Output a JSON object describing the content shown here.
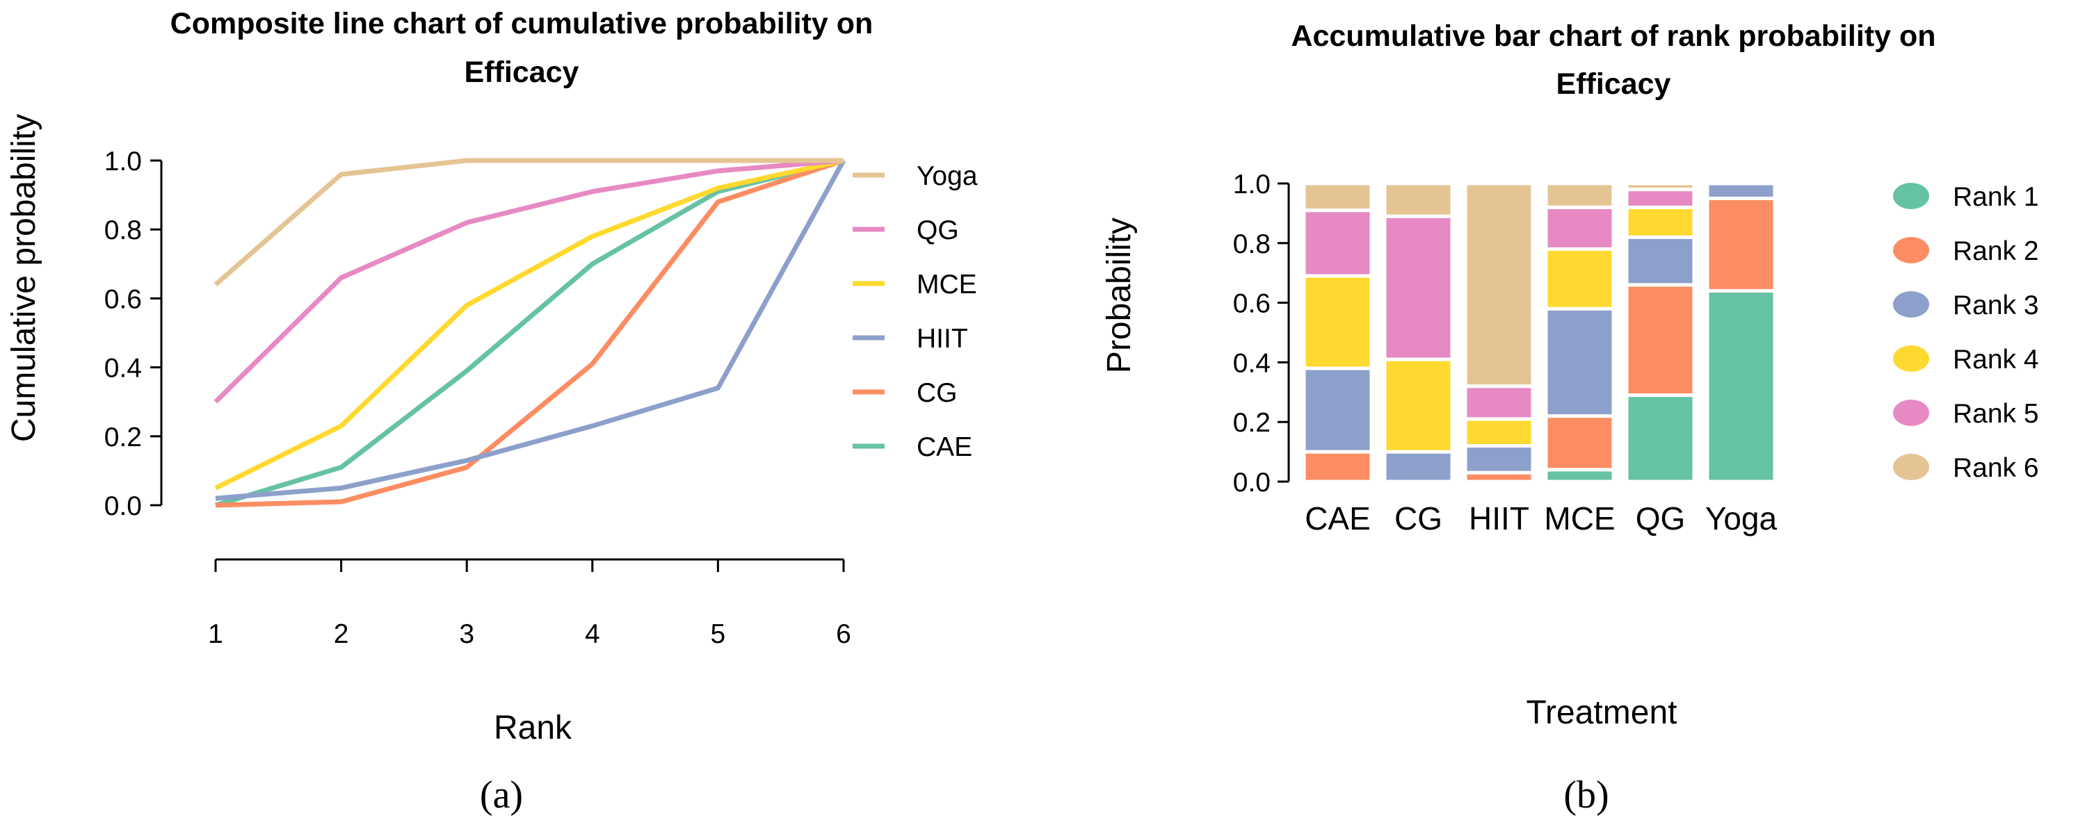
{
  "chart_data": [
    {
      "type": "line",
      "title_lines": [
        "Composite line chart of cumulative probability on",
        "Efficacy"
      ],
      "xlabel": "Rank",
      "ylabel": "Cumulative probability",
      "x": [
        1,
        2,
        3,
        4,
        5,
        6
      ],
      "xlim": [
        1,
        6
      ],
      "ylim": [
        0,
        1
      ],
      "y_ticks": [
        "0.0",
        "0.2",
        "0.4",
        "0.6",
        "0.8",
        "1.0"
      ],
      "x_ticks": [
        "1",
        "2",
        "3",
        "4",
        "5",
        "6"
      ],
      "panel_label": "(a)",
      "legend_position": "right",
      "series": [
        {
          "name": "Yoga",
          "color": "#E5C494",
          "values": [
            0.64,
            0.96,
            1.0,
            1.0,
            1.0,
            1.0
          ]
        },
        {
          "name": "QG",
          "color": "#E78AC3",
          "values": [
            0.3,
            0.66,
            0.82,
            0.91,
            0.97,
            1.0
          ]
        },
        {
          "name": "MCE",
          "color": "#FFD92F",
          "values": [
            0.05,
            0.23,
            0.58,
            0.78,
            0.92,
            1.0
          ]
        },
        {
          "name": "HIIT",
          "color": "#8DA0CB",
          "values": [
            0.02,
            0.05,
            0.13,
            0.23,
            0.34,
            1.0
          ]
        },
        {
          "name": "CG",
          "color": "#FC8D62",
          "values": [
            0.0,
            0.01,
            0.11,
            0.41,
            0.88,
            1.0
          ]
        },
        {
          "name": "CAE",
          "color": "#66C2A5",
          "values": [
            0.0,
            0.11,
            0.39,
            0.7,
            0.91,
            1.0
          ]
        }
      ]
    },
    {
      "type": "bar",
      "stacked": true,
      "title_lines": [
        "Accumulative bar chart of rank probability on",
        "Efficacy"
      ],
      "xlabel": "Treatment",
      "ylabel": "Probability",
      "ylim": [
        0,
        1
      ],
      "y_ticks": [
        "0.0",
        "0.2",
        "0.4",
        "0.6",
        "0.8",
        "1.0"
      ],
      "categories": [
        "CAE",
        "CG",
        "HIIT",
        "MCE",
        "QG",
        "Yoga"
      ],
      "panel_label": "(b)",
      "legend_position": "right",
      "series": [
        {
          "name": "Rank 1",
          "color": "#66C2A5",
          "values": [
            0.0,
            0.0,
            0.0,
            0.04,
            0.29,
            0.64
          ]
        },
        {
          "name": "Rank 2",
          "color": "#FC8D62",
          "values": [
            0.1,
            0.0,
            0.03,
            0.18,
            0.37,
            0.31
          ]
        },
        {
          "name": "Rank 3",
          "color": "#8DA0CB",
          "values": [
            0.28,
            0.1,
            0.09,
            0.36,
            0.16,
            0.05
          ]
        },
        {
          "name": "Rank 4",
          "color": "#FFD92F",
          "values": [
            0.31,
            0.31,
            0.09,
            0.2,
            0.1,
            0.0
          ]
        },
        {
          "name": "Rank 5",
          "color": "#E78AC3",
          "values": [
            0.22,
            0.48,
            0.11,
            0.14,
            0.06,
            0.0
          ]
        },
        {
          "name": "Rank 6",
          "color": "#E5C494",
          "values": [
            0.09,
            0.11,
            0.68,
            0.08,
            0.02,
            0.0
          ]
        }
      ]
    }
  ]
}
